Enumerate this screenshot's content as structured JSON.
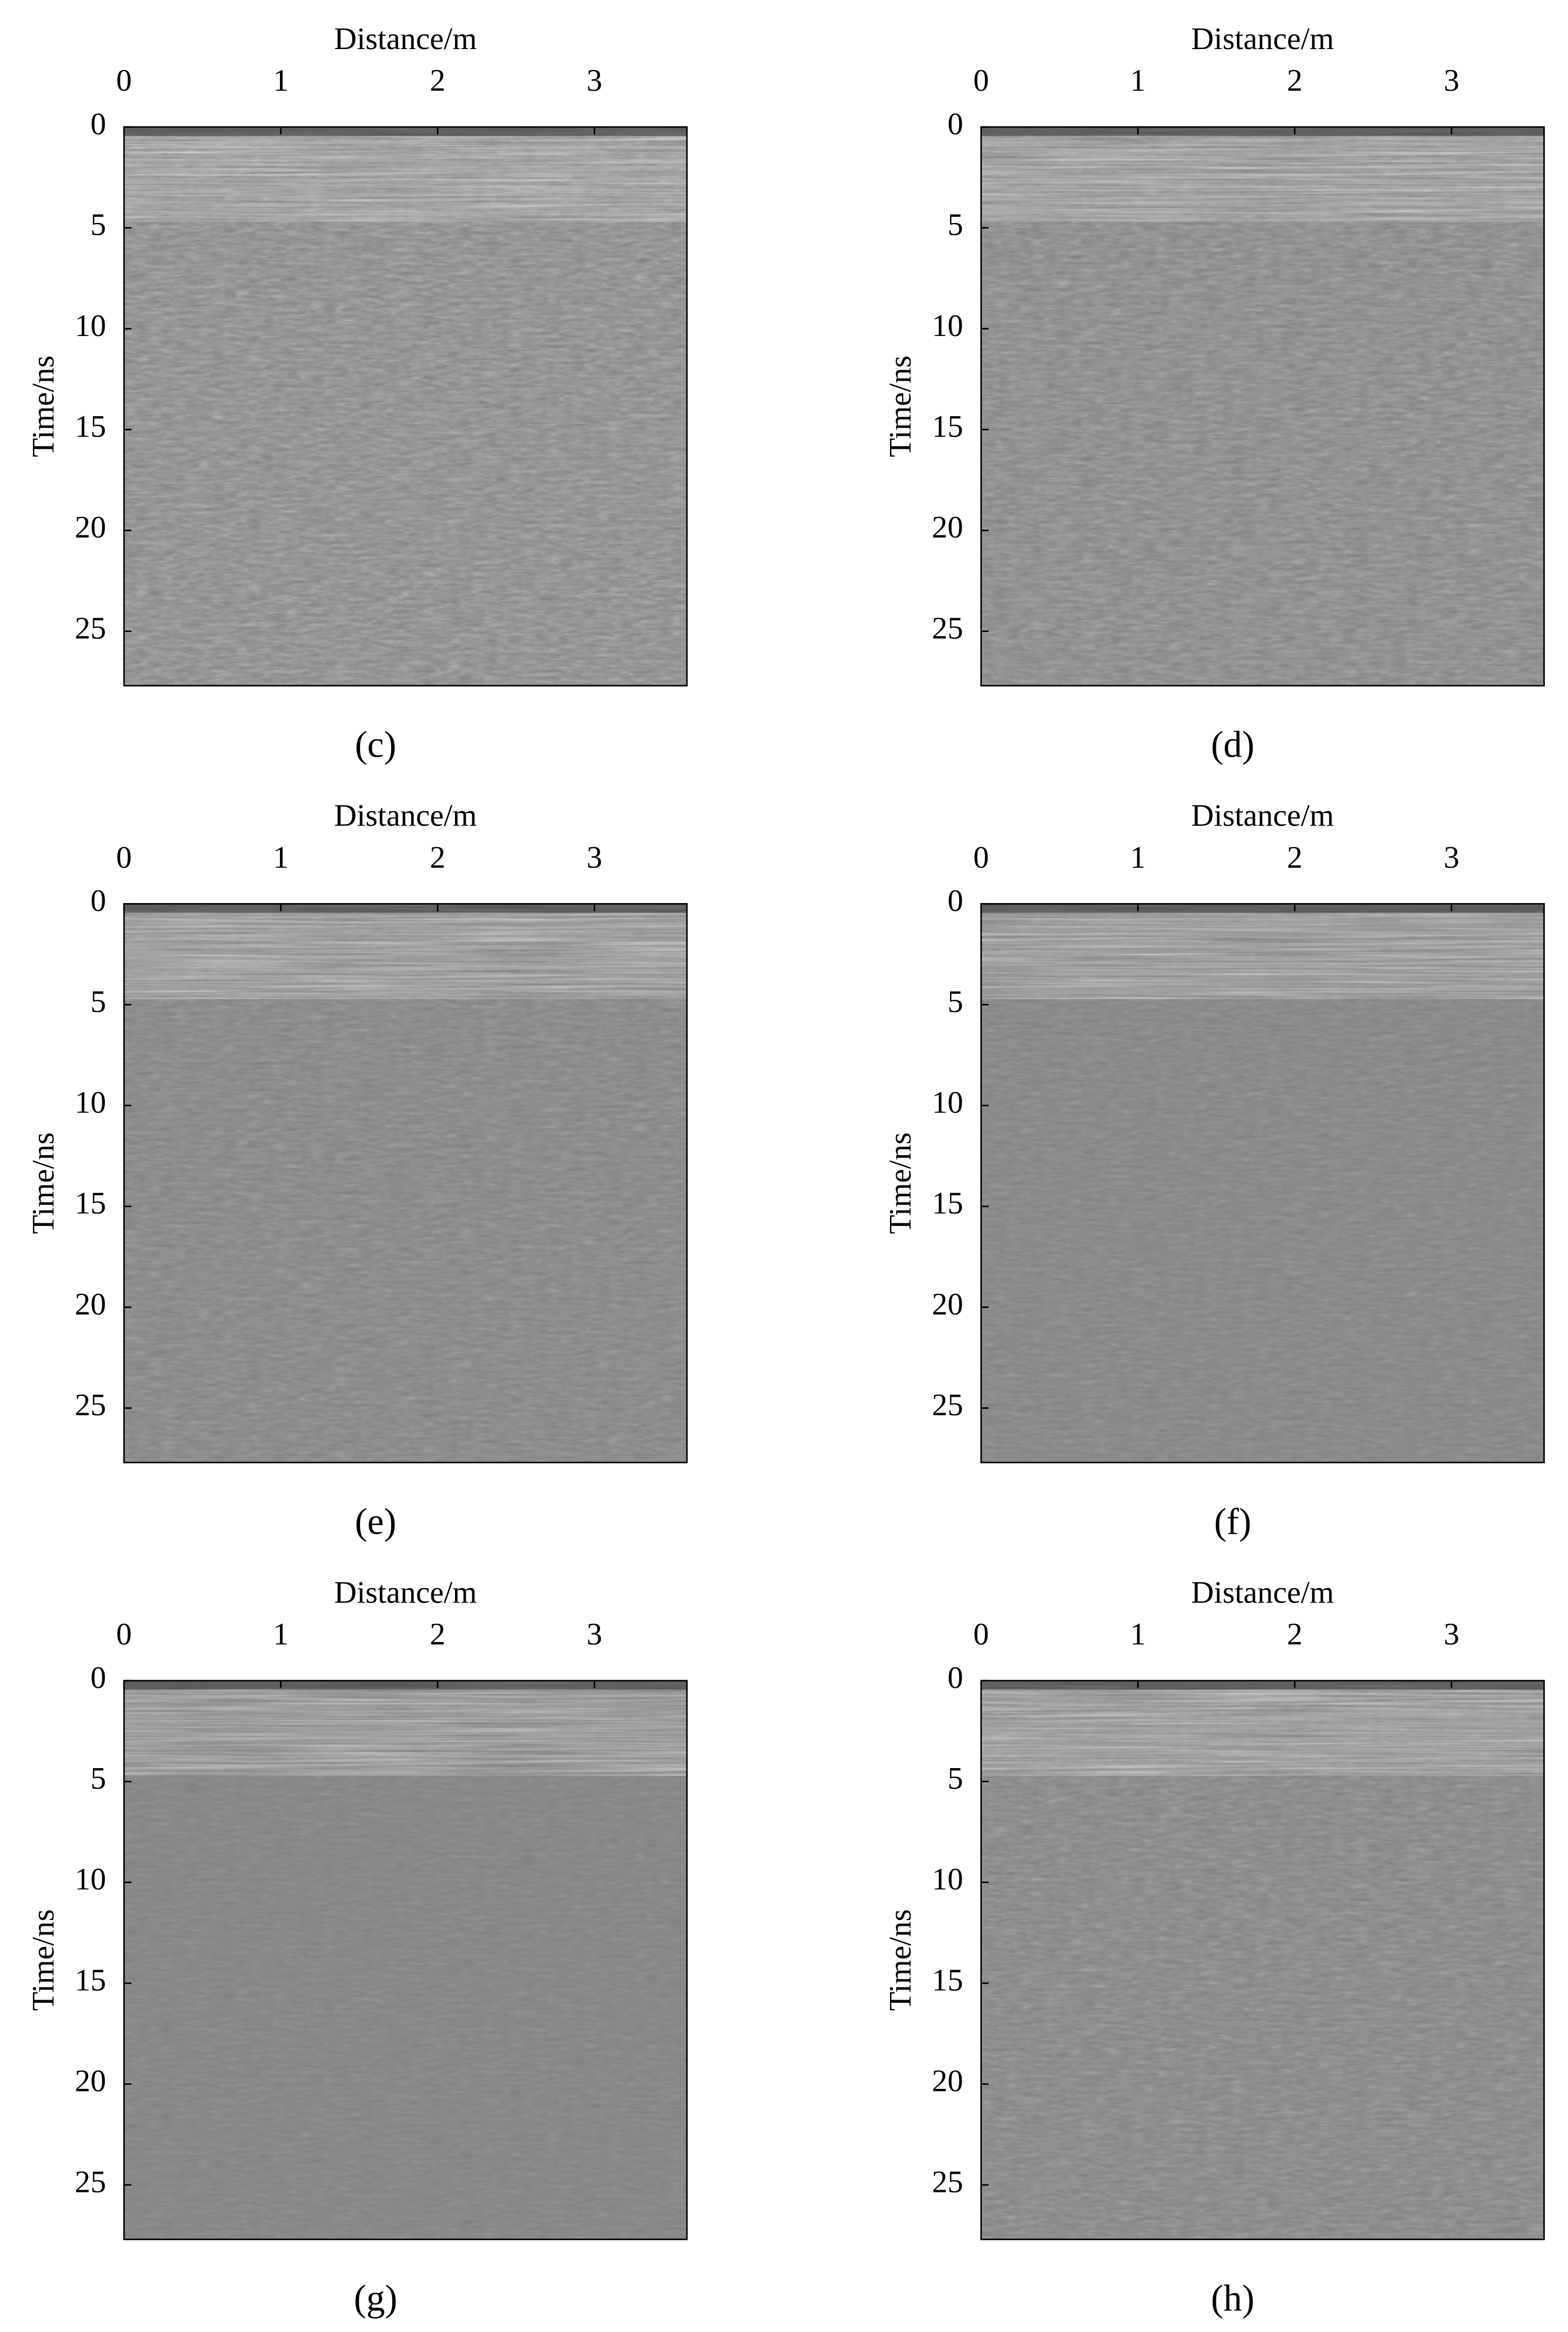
{
  "chart_data": [
    {
      "type": "radargram",
      "caption": "(c)",
      "xlabel": "Distance/m",
      "ylabel": "Time/ns",
      "xlim": [
        0,
        3.59
      ],
      "ylim": [
        0,
        27.7
      ],
      "y_reversed": true,
      "xticks": [
        0,
        1,
        2,
        3
      ],
      "yticks": [
        0,
        5,
        10,
        15,
        20,
        25
      ]
    },
    {
      "type": "radargram",
      "caption": "(d)",
      "xlabel": "Distance/m",
      "ylabel": "Time/ns",
      "xlim": [
        0,
        3.59
      ],
      "ylim": [
        0,
        27.7
      ],
      "y_reversed": true,
      "xticks": [
        0,
        1,
        2,
        3
      ],
      "yticks": [
        0,
        5,
        10,
        15,
        20,
        25
      ]
    },
    {
      "type": "radargram",
      "caption": "(e)",
      "xlabel": "Distance/m",
      "ylabel": "Time/ns",
      "xlim": [
        0,
        3.59
      ],
      "ylim": [
        0,
        27.7
      ],
      "y_reversed": true,
      "xticks": [
        0,
        1,
        2,
        3
      ],
      "yticks": [
        0,
        5,
        10,
        15,
        20,
        25
      ]
    },
    {
      "type": "radargram",
      "caption": "(f)",
      "xlabel": "Distance/m",
      "ylabel": "Time/ns",
      "xlim": [
        0,
        3.59
      ],
      "ylim": [
        0,
        27.7
      ],
      "y_reversed": true,
      "xticks": [
        0,
        1,
        2,
        3
      ],
      "yticks": [
        0,
        5,
        10,
        15,
        20,
        25
      ]
    },
    {
      "type": "radargram",
      "caption": "(g)",
      "xlabel": "Distance/m",
      "ylabel": "Time/ns",
      "xlim": [
        0,
        3.59
      ],
      "ylim": [
        0,
        27.7
      ],
      "y_reversed": true,
      "xticks": [
        0,
        1,
        2,
        3
      ],
      "yticks": [
        0,
        5,
        10,
        15,
        20,
        25
      ]
    },
    {
      "type": "radargram",
      "caption": "(h)",
      "xlabel": "Distance/m",
      "ylabel": "Time/ns",
      "xlim": [
        0,
        3.59
      ],
      "ylim": [
        0,
        27.7
      ],
      "y_reversed": true,
      "xticks": [
        0,
        1,
        2,
        3
      ],
      "yticks": [
        0,
        5,
        10,
        15,
        20,
        25
      ]
    }
  ]
}
